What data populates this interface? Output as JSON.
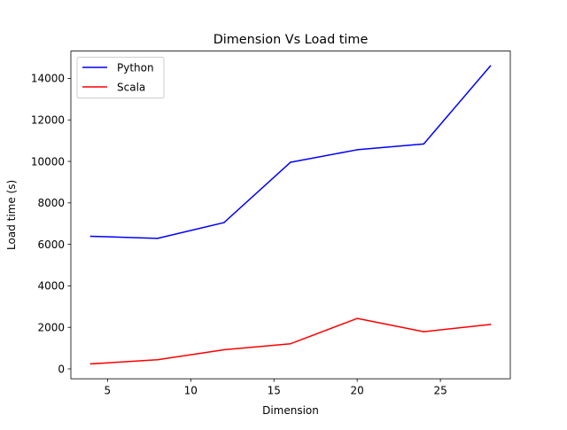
{
  "chart_data": {
    "type": "line",
    "title": "Dimension Vs Load time",
    "xlabel": "Dimension",
    "ylabel": "Load time (s)",
    "x": [
      4,
      8,
      12,
      16,
      20,
      24,
      28
    ],
    "series": [
      {
        "name": "Python",
        "color": "#0000ff",
        "values": [
          6390,
          6290,
          7050,
          9960,
          10560,
          10840,
          14600
        ]
      },
      {
        "name": "Scala",
        "color": "#ff0000",
        "values": [
          240,
          440,
          920,
          1210,
          2430,
          1790,
          2140
        ]
      }
    ],
    "xlim": [
      2.8,
      29.2
    ],
    "ylim": [
      -478,
      15318
    ],
    "xticks": [
      5,
      10,
      15,
      20,
      25
    ],
    "yticks": [
      0,
      2000,
      4000,
      6000,
      8000,
      10000,
      12000,
      14000
    ],
    "grid": false,
    "legend_position": "upper-left"
  }
}
